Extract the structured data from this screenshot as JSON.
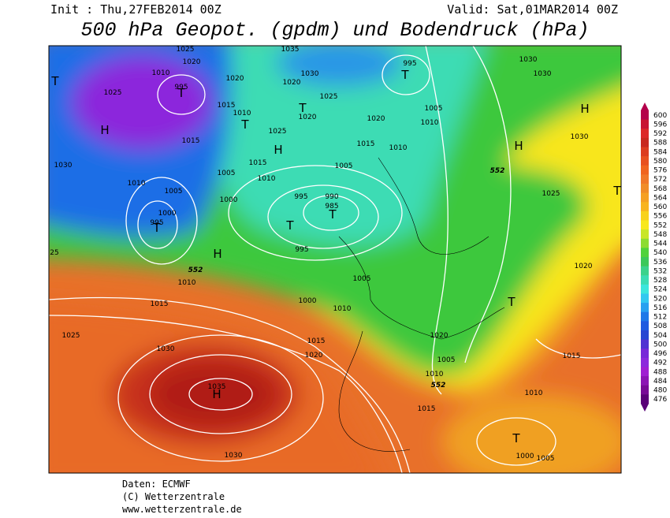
{
  "header": {
    "init": "Init : Thu,27FEB2014 00Z",
    "valid": "Valid: Sat,01MAR2014 00Z",
    "title": "500 hPa Geopot. (gpdm) und Bodendruck (hPa)"
  },
  "colorbar": {
    "labels": [
      "600",
      "596",
      "592",
      "588",
      "584",
      "580",
      "576",
      "572",
      "568",
      "564",
      "560",
      "556",
      "552",
      "548",
      "544",
      "540",
      "536",
      "532",
      "528",
      "524",
      "520",
      "516",
      "512",
      "508",
      "504",
      "500",
      "496",
      "492",
      "488",
      "484",
      "480",
      "476"
    ]
  },
  "map": {
    "labels": [
      "1025",
      "1035",
      "1020",
      "1010",
      "995",
      "1025",
      "1015",
      "1015",
      "1010",
      "1020",
      "1030",
      "1020",
      "1025",
      "1020",
      "1025",
      "1015",
      "1010",
      "1005",
      "1000",
      "1005",
      "1010",
      "1000",
      "995",
      "1030",
      "995",
      "1030",
      "1030",
      "1005",
      "1010",
      "1020",
      "1015",
      "1010",
      "1005",
      "995",
      "990",
      "985",
      "995",
      "1025",
      "1030",
      "1020",
      "552",
      "552",
      "552",
      "1010",
      "1015",
      "1000",
      "1005",
      "1010",
      "1015",
      "1020",
      "1025",
      "1030",
      "1035",
      "1030",
      "1015",
      "1010",
      "1005",
      "1020",
      "1015",
      "1010",
      "1005",
      "1000",
      "25"
    ],
    "centers": [
      "T",
      "H",
      "T",
      "H",
      "T",
      "T",
      "H",
      "T",
      "T",
      "T",
      "T",
      "H",
      "H",
      "T",
      "T",
      "H",
      "T"
    ]
  },
  "footer": {
    "data": "Daten: ECMWF",
    "copyright": "(C) Wetterzentrale",
    "url": "www.wetterzentrale.de"
  }
}
